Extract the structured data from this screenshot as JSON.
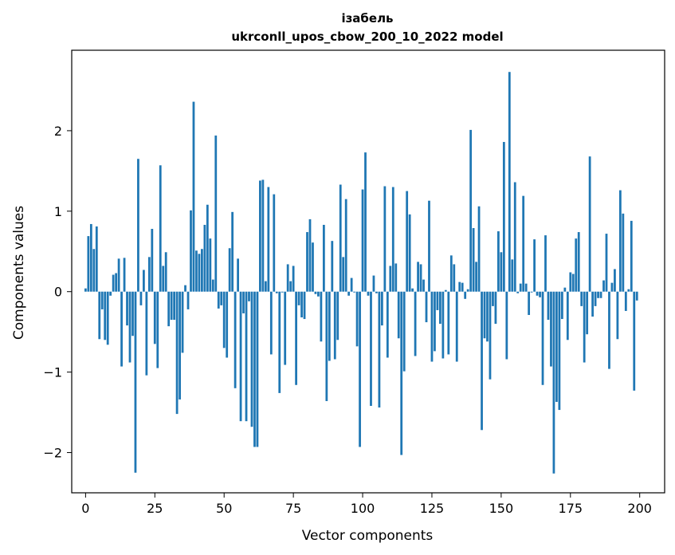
{
  "chart_data": {
    "type": "bar",
    "title_line1": "ізабель",
    "title_line2": "ukrconll_upos_cbow_200_10_2022 model",
    "xlabel": "Vector components",
    "ylabel": "Components values",
    "xlim": [
      -5,
      209
    ],
    "ylim": [
      -2.5,
      3.0
    ],
    "xticks": [
      0,
      25,
      50,
      75,
      100,
      125,
      150,
      175,
      200
    ],
    "yticks": [
      -2,
      -1,
      0,
      1,
      2
    ],
    "ytick_labels": [
      "−2",
      "−1",
      "0",
      "1",
      "2"
    ],
    "grid": false,
    "bar_color": "#1f77b4",
    "values": [
      0.04,
      0.69,
      0.84,
      0.53,
      0.81,
      -0.59,
      -0.22,
      -0.6,
      -0.66,
      -0.05,
      0.21,
      0.23,
      0.41,
      -0.93,
      0.42,
      -0.42,
      -0.88,
      -0.55,
      -2.25,
      1.65,
      -0.17,
      0.27,
      -1.04,
      0.43,
      0.78,
      -0.65,
      -0.95,
      1.57,
      0.32,
      0.49,
      -0.43,
      -0.35,
      -0.35,
      -1.52,
      -1.34,
      -0.76,
      0.08,
      -0.22,
      1.01,
      2.36,
      0.51,
      0.47,
      0.53,
      0.83,
      1.08,
      0.66,
      0.15,
      1.94,
      -0.21,
      -0.17,
      -0.7,
      -0.82,
      0.54,
      0.99,
      -1.2,
      0.41,
      -1.61,
      -0.27,
      -1.61,
      -0.12,
      -1.68,
      -1.93,
      -1.93,
      1.38,
      1.39,
      0.13,
      1.3,
      -0.78,
      1.21,
      -0.02,
      -1.26,
      -0.01,
      -0.91,
      0.34,
      0.13,
      0.32,
      -1.16,
      -0.17,
      -0.32,
      -0.34,
      0.74,
      0.9,
      0.61,
      -0.03,
      -0.06,
      -0.62,
      0.83,
      -1.36,
      -0.86,
      0.63,
      -0.84,
      -0.6,
      1.33,
      0.43,
      1.15,
      -0.05,
      0.17,
      -0.01,
      -0.68,
      -1.93,
      1.27,
      1.73,
      -0.05,
      -1.42,
      0.2,
      -0.02,
      -1.44,
      -0.42,
      1.31,
      -0.82,
      0.32,
      1.3,
      0.35,
      -0.58,
      -2.03,
      -0.99,
      1.25,
      0.96,
      0.04,
      -0.8,
      0.37,
      0.34,
      0.15,
      -0.38,
      1.13,
      -0.87,
      -0.74,
      -0.23,
      -0.4,
      -0.83,
      0.02,
      -0.78,
      0.45,
      0.34,
      -0.87,
      0.12,
      0.11,
      -0.09,
      0.03,
      2.01,
      0.79,
      0.37,
      1.06,
      -1.72,
      -0.58,
      -0.62,
      -1.09,
      -0.18,
      -0.4,
      0.75,
      0.49,
      1.86,
      -0.84,
      2.73,
      0.4,
      1.36,
      -0.02,
      0.1,
      1.19,
      0.1,
      -0.29,
      -0.01,
      0.65,
      -0.05,
      -0.07,
      -1.16,
      0.7,
      -0.35,
      -0.93,
      -2.26,
      -1.37,
      -1.47,
      -0.34,
      0.05,
      -0.6,
      0.24,
      0.22,
      0.66,
      0.74,
      -0.18,
      -0.88,
      -0.53,
      1.68,
      -0.31,
      -0.18,
      -0.08,
      -0.08,
      0.14,
      0.72,
      -0.96,
      0.11,
      0.28,
      -0.59,
      1.26,
      0.97,
      -0.24,
      0.03,
      0.88,
      -1.23,
      -0.11
    ]
  }
}
